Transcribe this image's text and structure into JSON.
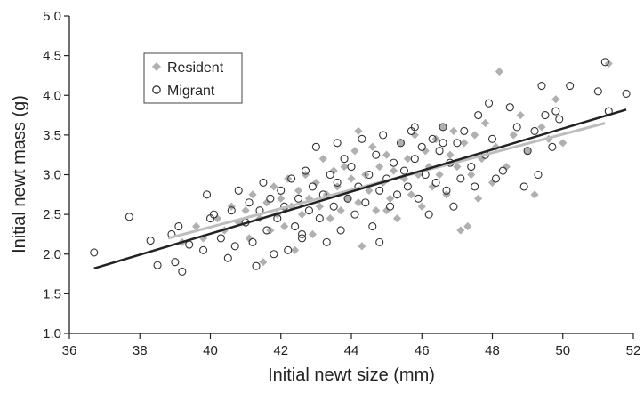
{
  "chart_data": {
    "type": "scatter",
    "title": "",
    "xlabel": "Initial newt size (mm)",
    "ylabel": "Initial newt mass (g)",
    "xlim": [
      36,
      52
    ],
    "ylim": [
      1.0,
      5.0
    ],
    "x_ticks": [
      "36",
      "38",
      "40",
      "42",
      "44",
      "46",
      "48",
      "50",
      "52"
    ],
    "y_ticks": [
      "1.0",
      "1.5",
      "2.0",
      "2.5",
      "3.0",
      "3.5",
      "4.0",
      "4.5",
      "5.0"
    ],
    "grid": false,
    "legend_position": "top-left",
    "series": [
      {
        "name": "Resident",
        "marker": "diamond",
        "color": "#b0b0b0",
        "fit_line": {
          "x": [
            38.8,
            51.2
          ],
          "y": [
            2.2,
            3.65
          ],
          "color": "#bdbdbd"
        },
        "points": [
          [
            39.2,
            2.15
          ],
          [
            39.6,
            2.35
          ],
          [
            39.8,
            2.2
          ],
          [
            40.2,
            2.45
          ],
          [
            40.4,
            2.3
          ],
          [
            40.6,
            2.6
          ],
          [
            40.8,
            2.4
          ],
          [
            41.0,
            2.55
          ],
          [
            41.1,
            2.2
          ],
          [
            41.2,
            2.75
          ],
          [
            41.4,
            2.45
          ],
          [
            41.5,
            1.9
          ],
          [
            41.6,
            2.65
          ],
          [
            41.7,
            2.3
          ],
          [
            41.8,
            2.85
          ],
          [
            41.9,
            2.5
          ],
          [
            42.0,
            2.7
          ],
          [
            42.1,
            2.35
          ],
          [
            42.2,
            2.95
          ],
          [
            42.3,
            2.6
          ],
          [
            42.4,
            2.05
          ],
          [
            42.5,
            2.8
          ],
          [
            42.6,
            2.5
          ],
          [
            42.7,
            3.0
          ],
          [
            42.8,
            2.7
          ],
          [
            42.9,
            2.25
          ],
          [
            43.0,
            2.9
          ],
          [
            43.1,
            2.6
          ],
          [
            43.2,
            3.2
          ],
          [
            43.3,
            2.75
          ],
          [
            43.4,
            2.45
          ],
          [
            43.5,
            3.05
          ],
          [
            43.6,
            2.85
          ],
          [
            43.7,
            2.55
          ],
          [
            43.8,
            3.1
          ],
          [
            43.9,
            2.7
          ],
          [
            44.0,
            2.95
          ],
          [
            44.1,
            3.3
          ],
          [
            44.2,
            2.65
          ],
          [
            44.3,
            2.1
          ],
          [
            44.4,
            3.0
          ],
          [
            44.5,
            2.8
          ],
          [
            44.6,
            3.35
          ],
          [
            44.7,
            2.55
          ],
          [
            44.8,
            3.1
          ],
          [
            44.9,
            2.9
          ],
          [
            45.0,
            3.25
          ],
          [
            45.1,
            2.7
          ],
          [
            45.2,
            3.05
          ],
          [
            45.3,
            2.45
          ],
          [
            45.4,
            3.4
          ],
          [
            45.5,
            2.95
          ],
          [
            45.6,
            3.2
          ],
          [
            45.7,
            2.75
          ],
          [
            45.8,
            3.5
          ],
          [
            45.9,
            3.0
          ],
          [
            46.0,
            2.6
          ],
          [
            46.1,
            3.3
          ],
          [
            46.2,
            3.1
          ],
          [
            46.3,
            2.85
          ],
          [
            46.4,
            3.45
          ],
          [
            46.5,
            3.0
          ],
          [
            46.6,
            3.6
          ],
          [
            46.7,
            2.75
          ],
          [
            46.8,
            3.25
          ],
          [
            46.9,
            3.55
          ],
          [
            47.0,
            3.1
          ],
          [
            47.1,
            2.3
          ],
          [
            47.2,
            3.4
          ],
          [
            47.3,
            2.35
          ],
          [
            47.4,
            3.0
          ],
          [
            47.5,
            3.5
          ],
          [
            47.7,
            3.2
          ],
          [
            47.8,
            3.65
          ],
          [
            48.0,
            2.9
          ],
          [
            48.1,
            3.35
          ],
          [
            48.2,
            4.3
          ],
          [
            48.4,
            3.1
          ],
          [
            48.6,
            3.5
          ],
          [
            48.8,
            3.75
          ],
          [
            49.0,
            3.3
          ],
          [
            49.2,
            2.75
          ],
          [
            49.4,
            3.6
          ],
          [
            49.6,
            3.45
          ],
          [
            49.8,
            3.95
          ],
          [
            50.0,
            3.4
          ],
          [
            51.3,
            4.4
          ],
          [
            47.6,
            2.7
          ],
          [
            44.2,
            3.55
          ],
          [
            45.0,
            2.55
          ]
        ]
      },
      {
        "name": "Migrant",
        "marker": "open-circle",
        "color": "#333333",
        "fit_line": {
          "x": [
            36.7,
            51.8
          ],
          "y": [
            1.82,
            3.82
          ],
          "color": "#222222"
        },
        "points": [
          [
            36.7,
            2.02
          ],
          [
            37.7,
            2.47
          ],
          [
            38.3,
            2.17
          ],
          [
            38.5,
            1.86
          ],
          [
            38.9,
            2.25
          ],
          [
            39.0,
            1.9
          ],
          [
            39.1,
            2.35
          ],
          [
            39.2,
            1.78
          ],
          [
            39.4,
            2.12
          ],
          [
            39.8,
            2.05
          ],
          [
            39.9,
            2.75
          ],
          [
            40.0,
            2.45
          ],
          [
            40.1,
            2.5
          ],
          [
            40.3,
            2.2
          ],
          [
            40.5,
            1.95
          ],
          [
            40.6,
            2.55
          ],
          [
            40.7,
            2.1
          ],
          [
            40.8,
            2.8
          ],
          [
            41.0,
            2.4
          ],
          [
            41.1,
            2.65
          ],
          [
            41.2,
            2.15
          ],
          [
            41.3,
            1.85
          ],
          [
            41.4,
            2.55
          ],
          [
            41.5,
            2.9
          ],
          [
            41.6,
            2.3
          ],
          [
            41.7,
            2.7
          ],
          [
            41.8,
            2.0
          ],
          [
            41.9,
            2.45
          ],
          [
            42.0,
            2.8
          ],
          [
            42.1,
            2.6
          ],
          [
            42.2,
            2.05
          ],
          [
            42.3,
            2.95
          ],
          [
            42.4,
            2.35
          ],
          [
            42.5,
            2.7
          ],
          [
            42.6,
            2.2
          ],
          [
            42.7,
            3.05
          ],
          [
            42.8,
            2.55
          ],
          [
            42.9,
            2.85
          ],
          [
            43.0,
            3.35
          ],
          [
            43.1,
            2.45
          ],
          [
            43.2,
            2.75
          ],
          [
            43.3,
            2.15
          ],
          [
            43.4,
            3.0
          ],
          [
            43.5,
            2.6
          ],
          [
            43.6,
            2.9
          ],
          [
            43.7,
            2.3
          ],
          [
            43.8,
            3.2
          ],
          [
            43.9,
            2.7
          ],
          [
            44.0,
            3.1
          ],
          [
            44.1,
            2.5
          ],
          [
            44.2,
            2.85
          ],
          [
            44.3,
            3.45
          ],
          [
            44.4,
            2.65
          ],
          [
            44.5,
            3.0
          ],
          [
            44.6,
            2.35
          ],
          [
            44.7,
            3.25
          ],
          [
            44.8,
            2.8
          ],
          [
            44.9,
            3.5
          ],
          [
            45.0,
            2.95
          ],
          [
            45.1,
            2.6
          ],
          [
            45.2,
            3.15
          ],
          [
            45.3,
            2.75
          ],
          [
            45.4,
            3.4
          ],
          [
            45.5,
            3.05
          ],
          [
            45.6,
            2.85
          ],
          [
            45.7,
            3.55
          ],
          [
            45.8,
            3.2
          ],
          [
            45.9,
            2.7
          ],
          [
            46.0,
            3.35
          ],
          [
            46.1,
            3.0
          ],
          [
            46.2,
            2.5
          ],
          [
            46.3,
            3.45
          ],
          [
            46.4,
            2.9
          ],
          [
            46.5,
            3.3
          ],
          [
            46.6,
            3.6
          ],
          [
            46.7,
            2.8
          ],
          [
            46.8,
            3.15
          ],
          [
            46.9,
            2.6
          ],
          [
            47.0,
            3.4
          ],
          [
            47.1,
            2.95
          ],
          [
            47.2,
            3.55
          ],
          [
            47.4,
            3.1
          ],
          [
            47.5,
            2.85
          ],
          [
            47.6,
            3.75
          ],
          [
            47.8,
            3.25
          ],
          [
            48.0,
            3.45
          ],
          [
            48.1,
            2.95
          ],
          [
            48.3,
            3.05
          ],
          [
            48.5,
            3.85
          ],
          [
            48.7,
            3.6
          ],
          [
            48.9,
            2.85
          ],
          [
            49.0,
            3.3
          ],
          [
            49.2,
            3.55
          ],
          [
            49.3,
            3.0
          ],
          [
            49.4,
            4.12
          ],
          [
            49.5,
            3.75
          ],
          [
            49.7,
            3.35
          ],
          [
            49.9,
            3.7
          ],
          [
            50.2,
            4.12
          ],
          [
            51.0,
            4.05
          ],
          [
            51.2,
            4.42
          ],
          [
            51.3,
            3.8
          ],
          [
            51.8,
            4.02
          ],
          [
            47.9,
            3.9
          ],
          [
            49.8,
            3.8
          ],
          [
            45.8,
            3.6
          ],
          [
            43.6,
            3.4
          ],
          [
            44.8,
            2.15
          ],
          [
            42.6,
            2.25
          ],
          [
            46.6,
            3.4
          ]
        ]
      }
    ]
  }
}
